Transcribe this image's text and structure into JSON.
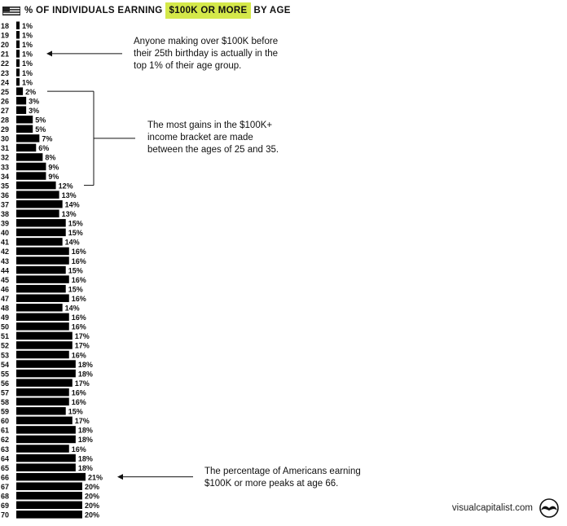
{
  "header": {
    "title_prefix": "% OF INDIVIDUALS EARNING",
    "title_highlight": "$100K OR MORE",
    "title_suffix": "BY AGE"
  },
  "annotations": [
    {
      "text_lines": [
        "Anyone making over $100K before",
        "their 25th birthday is actually in the",
        "top 1% of their age group."
      ]
    },
    {
      "text_lines": [
        "The most gains in the $100K+",
        "income bracket are made",
        "between the ages of 25 and 35."
      ]
    },
    {
      "text_lines": [
        "The percentage of Americans earning",
        "$100K or more peaks at age 66."
      ]
    }
  ],
  "footer": {
    "brand": "visualcapitalist.com",
    "logo_icon": "mustache-icon"
  },
  "colors": {
    "bar": "#000000",
    "highlight": "#d4e84a",
    "text": "#111111"
  },
  "chart_data": {
    "type": "bar",
    "orientation": "horizontal",
    "title": "% of individuals earning $100K or more by age",
    "categories": [
      "18",
      "19",
      "20",
      "21",
      "22",
      "23",
      "24",
      "25",
      "26",
      "27",
      "28",
      "29",
      "30",
      "31",
      "32",
      "33",
      "34",
      "35",
      "36",
      "37",
      "38",
      "39",
      "40",
      "41",
      "42",
      "43",
      "44",
      "45",
      "46",
      "47",
      "48",
      "49",
      "50",
      "51",
      "52",
      "53",
      "54",
      "55",
      "56",
      "57",
      "58",
      "59",
      "60",
      "61",
      "62",
      "63",
      "64",
      "65",
      "66",
      "67",
      "68",
      "69",
      "70"
    ],
    "values": [
      1,
      1,
      1,
      1,
      1,
      1,
      1,
      2,
      3,
      3,
      5,
      5,
      7,
      6,
      8,
      9,
      9,
      12,
      13,
      14,
      13,
      15,
      15,
      14,
      16,
      16,
      15,
      16,
      15,
      16,
      14,
      16,
      16,
      17,
      17,
      16,
      18,
      18,
      17,
      16,
      16,
      15,
      17,
      18,
      18,
      16,
      18,
      18,
      21,
      20,
      20,
      20,
      20
    ],
    "value_suffix": "%",
    "xlim": [
      0,
      21
    ]
  }
}
